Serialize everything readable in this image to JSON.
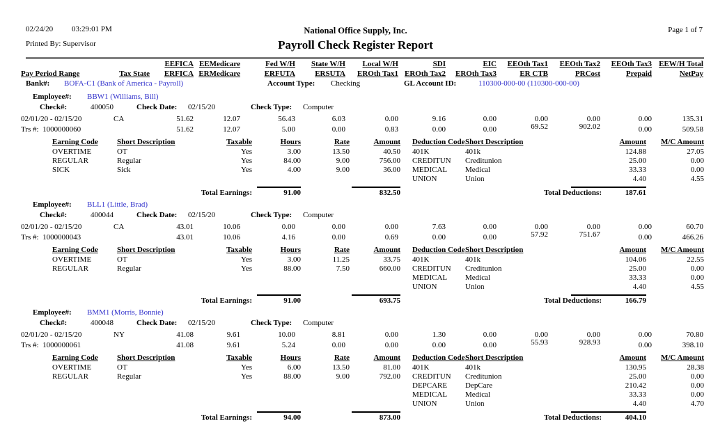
{
  "page": {
    "date": "02/24/20",
    "time": "03:29:01 PM",
    "printed_by_label": "Printed By:",
    "printed_by": "Supervisor",
    "company": "National Office Supply, Inc.",
    "title": "Payroll Check Register Report",
    "page_label": "Page 1 of 7"
  },
  "columns": {
    "row1": [
      "",
      "",
      "EEFICA",
      "EEMedicare",
      "Fed W/H",
      "State W/H",
      "Local W/H",
      "SDI",
      "EIC",
      "EEOth Tax1",
      "EEOth Tax2",
      "EEOth Tax3",
      "EEW/H Total"
    ],
    "row2": [
      "Pay Period Range",
      "Tax State",
      "ERFICA",
      "ERMedicare",
      "ERFUTA",
      "ERSUTA",
      "EROth Tax1",
      "EROth Tax2",
      "EROth Tax3",
      "ER CTB",
      "PRCost",
      "Prepaid",
      "NetPay"
    ]
  },
  "bank": {
    "label": "Bank#:",
    "value": "BOFA-C1 (Bank of America - Payroll)",
    "account_type_label": "Account Type:",
    "account_type": "Checking",
    "gl_label": "GL Account ID:",
    "gl_value": "110300-000-00 (110300-000-00)"
  },
  "labels": {
    "employee": "Employee#:",
    "check": "Check#:",
    "check_date": "Check Date:",
    "check_type": "Check Type:",
    "trs": "Trs #:",
    "earning_code": "Earning Code",
    "short_description": "Short Description",
    "taxable": "Taxable",
    "hours": "Hours",
    "rate": "Rate",
    "amount": "Amount",
    "deduction_code": "Deduction Code",
    "mc_amount": "M/C Amount",
    "total_earnings": "Total Earnings:",
    "total_deductions": "Total Deductions:"
  },
  "employees": [
    {
      "id": "BBW1 (Williams, Bill)",
      "check_no": "400050",
      "check_date": "02/15/20",
      "check_type": "Computer",
      "pay_period": "02/01/20 - 02/15/20",
      "tax_state": "CA",
      "trs_no": "1000000060",
      "ee_row": [
        "51.62",
        "12.07",
        "56.43",
        "6.03",
        "0.00",
        "9.16",
        "0.00",
        "0.00",
        "0.00",
        "0.00",
        "135.31"
      ],
      "er_row": [
        "51.62",
        "12.07",
        "5.00",
        "0.00",
        "0.83",
        "0.00",
        "0.00",
        "69.52",
        "902.02",
        "0.00",
        "509.58"
      ],
      "earnings": [
        {
          "code": "OVERTIME",
          "desc": "OT",
          "taxable": "Yes",
          "hours": "3.00",
          "rate": "13.50",
          "amount": "40.50"
        },
        {
          "code": "REGULAR",
          "desc": "Regular",
          "taxable": "Yes",
          "hours": "84.00",
          "rate": "9.00",
          "amount": "756.00"
        },
        {
          "code": "SICK",
          "desc": "Sick",
          "taxable": "Yes",
          "hours": "4.00",
          "rate": "9.00",
          "amount": "36.00"
        }
      ],
      "deductions": [
        {
          "code": "401K",
          "desc": "401k",
          "amount": "124.88",
          "mc": "27.05"
        },
        {
          "code": "CREDITUN",
          "desc": "Creditunion",
          "amount": "25.00",
          "mc": "0.00"
        },
        {
          "code": "MEDICAL",
          "desc": "Medical",
          "amount": "33.33",
          "mc": "0.00"
        },
        {
          "code": "UNION",
          "desc": "Union",
          "amount": "4.40",
          "mc": "4.55"
        }
      ],
      "total_hours": "91.00",
      "total_earnings": "832.50",
      "total_deductions": "187.61"
    },
    {
      "id": "BLL1 (Little, Brad)",
      "check_no": "400044",
      "check_date": "02/15/20",
      "check_type": "Computer",
      "pay_period": "02/01/20 - 02/15/20",
      "tax_state": "CA",
      "trs_no": "1000000043",
      "ee_row": [
        "43.01",
        "10.06",
        "0.00",
        "0.00",
        "0.00",
        "7.63",
        "0.00",
        "0.00",
        "0.00",
        "0.00",
        "60.70"
      ],
      "er_row": [
        "43.01",
        "10.06",
        "4.16",
        "0.00",
        "0.69",
        "0.00",
        "0.00",
        "57.92",
        "751.67",
        "0.00",
        "466.26"
      ],
      "earnings": [
        {
          "code": "OVERTIME",
          "desc": "OT",
          "taxable": "Yes",
          "hours": "3.00",
          "rate": "11.25",
          "amount": "33.75"
        },
        {
          "code": "REGULAR",
          "desc": "Regular",
          "taxable": "Yes",
          "hours": "88.00",
          "rate": "7.50",
          "amount": "660.00"
        }
      ],
      "deductions": [
        {
          "code": "401K",
          "desc": "401k",
          "amount": "104.06",
          "mc": "22.55"
        },
        {
          "code": "CREDITUN",
          "desc": "Creditunion",
          "amount": "25.00",
          "mc": "0.00"
        },
        {
          "code": "MEDICAL",
          "desc": "Medical",
          "amount": "33.33",
          "mc": "0.00"
        },
        {
          "code": "UNION",
          "desc": "Union",
          "amount": "4.40",
          "mc": "4.55"
        }
      ],
      "total_hours": "91.00",
      "total_earnings": "693.75",
      "total_deductions": "166.79"
    },
    {
      "id": "BMM1 (Morris, Bonnie)",
      "check_no": "400048",
      "check_date": "02/15/20",
      "check_type": "Computer",
      "pay_period": "02/01/20 - 02/15/20",
      "tax_state": "NY",
      "trs_no": "1000000061",
      "ee_row": [
        "41.08",
        "9.61",
        "10.00",
        "8.81",
        "0.00",
        "1.30",
        "0.00",
        "0.00",
        "0.00",
        "0.00",
        "70.80"
      ],
      "er_row": [
        "41.08",
        "9.61",
        "5.24",
        "0.00",
        "0.00",
        "0.00",
        "0.00",
        "55.93",
        "928.93",
        "0.00",
        "398.10"
      ],
      "earnings": [
        {
          "code": "OVERTIME",
          "desc": "OT",
          "taxable": "Yes",
          "hours": "6.00",
          "rate": "13.50",
          "amount": "81.00"
        },
        {
          "code": "REGULAR",
          "desc": "Regular",
          "taxable": "Yes",
          "hours": "88.00",
          "rate": "9.00",
          "amount": "792.00"
        }
      ],
      "deductions": [
        {
          "code": "401K",
          "desc": "401k",
          "amount": "130.95",
          "mc": "28.38"
        },
        {
          "code": "CREDITUN",
          "desc": "Creditunion",
          "amount": "25.00",
          "mc": "0.00"
        },
        {
          "code": "DEPCARE",
          "desc": "DepCare",
          "amount": "210.42",
          "mc": "0.00"
        },
        {
          "code": "MEDICAL",
          "desc": "Medical",
          "amount": "33.33",
          "mc": "0.00"
        },
        {
          "code": "UNION",
          "desc": "Union",
          "amount": "4.40",
          "mc": "4.70"
        }
      ],
      "total_hours": "94.00",
      "total_earnings": "873.00",
      "total_deductions": "404.10"
    }
  ]
}
